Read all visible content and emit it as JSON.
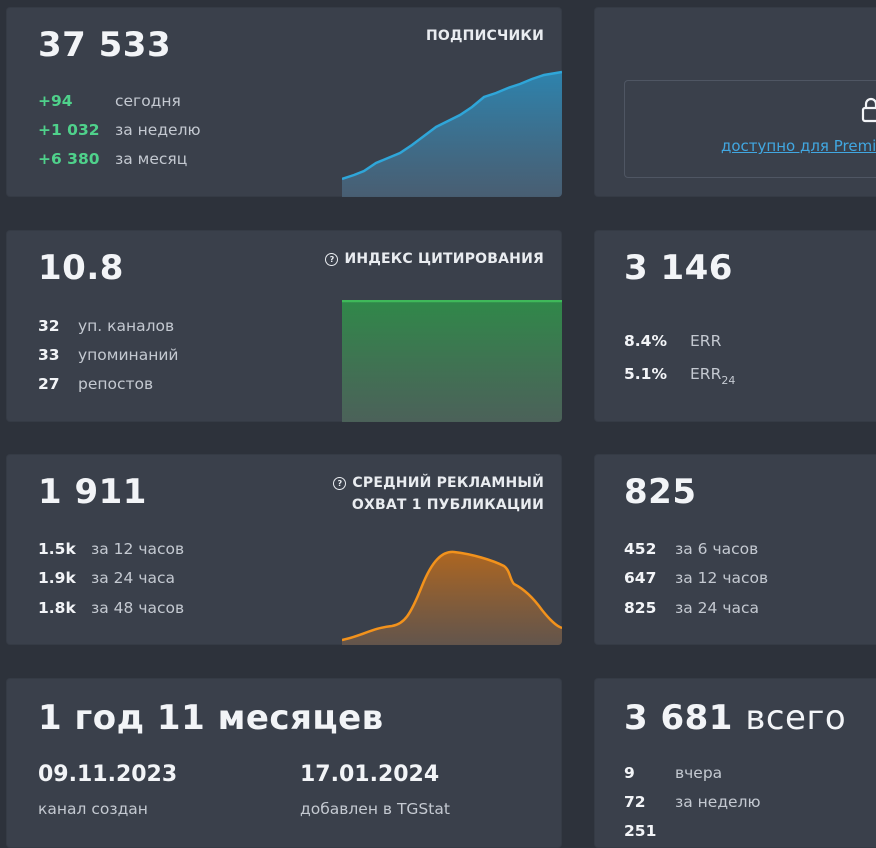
{
  "subscribers": {
    "value": "37 533",
    "title": "ПОДПИСЧИКИ",
    "rows": [
      {
        "value": "+94",
        "label": "сегодня"
      },
      {
        "value": "+1 032",
        "label": "за неделю"
      },
      {
        "value": "+6 380",
        "label": "за месяц"
      }
    ]
  },
  "premium": {
    "link": "доступно для Premi"
  },
  "citation": {
    "value": "10.8",
    "title": "ИНДЕКС ЦИТИРОВАНИЯ",
    "rows": [
      {
        "value": "32",
        "label": "уп. каналов"
      },
      {
        "value": "33",
        "label": "упоминаний"
      },
      {
        "value": "27",
        "label": "репостов"
      }
    ]
  },
  "views": {
    "value": "3 146",
    "rows": [
      {
        "value": "8.4%",
        "label": "ERR",
        "sub": ""
      },
      {
        "value": "5.1%",
        "label": "ERR",
        "sub": "24"
      }
    ]
  },
  "ad_reach": {
    "value": "1 911",
    "title_line1": "СРЕДНИЙ РЕКЛАМНЫЙ",
    "title_line2": "ОХВАТ 1 ПУБЛИКАЦИИ",
    "rows": [
      {
        "value": "1.5k",
        "label": "за 12 часов"
      },
      {
        "value": "1.9k",
        "label": "за 24 часа"
      },
      {
        "value": "1.8k",
        "label": "за 48 часов"
      }
    ]
  },
  "post_reach": {
    "value": "825",
    "rows": [
      {
        "value": "452",
        "label": "за 6 часов"
      },
      {
        "value": "647",
        "label": "за 12 часов"
      },
      {
        "value": "825",
        "label": "за 24 часа"
      }
    ]
  },
  "age": {
    "value": "1 год 11 месяцев",
    "created_date": "09.11.2023",
    "created_label": "канал создан",
    "added_date": "17.01.2024",
    "added_label": "добавлен в TGStat"
  },
  "posts": {
    "value": "3 681",
    "value_suffix": "всего",
    "rows": [
      {
        "value": "9",
        "label": "вчера"
      },
      {
        "value": "72",
        "label": "за неделю"
      },
      {
        "value": "251",
        "label": ""
      }
    ]
  },
  "colors": {
    "bg": "#2d323b",
    "card": "#3a404b",
    "green": "#4fd18b",
    "blue_line": "#2fa6d9",
    "green_chart": "#3fb95a",
    "orange": "#f2921c",
    "link": "#41a7e1"
  }
}
